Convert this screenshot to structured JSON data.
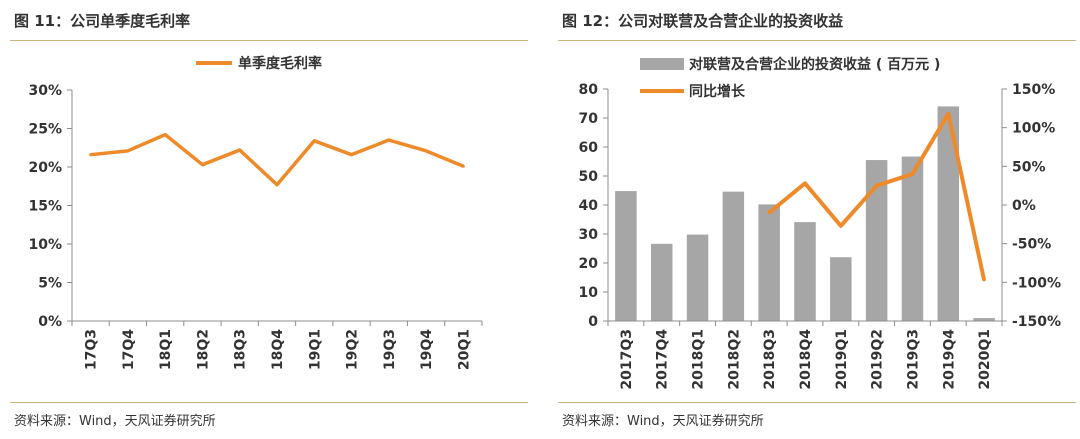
{
  "left": {
    "title": "图 11：公司单季度毛利率",
    "source": "资料来源：Wind，天风证券研究所"
  },
  "right": {
    "title": "图 12：公司对联营及合营企业的投资收益",
    "source": "资料来源：Wind，天风证券研究所"
  },
  "colors": {
    "line": "#ee8a2a",
    "bar": "#a6a6a6",
    "axis": "#8c8c8c",
    "text": "#333333"
  },
  "chart_data": [
    {
      "type": "line",
      "title": "",
      "categories": [
        "17Q3",
        "17Q4",
        "18Q1",
        "18Q2",
        "18Q3",
        "18Q4",
        "19Q1",
        "19Q2",
        "19Q3",
        "19Q4",
        "20Q1"
      ],
      "series": [
        {
          "name": "单季度毛利率",
          "values": [
            21.6,
            22.1,
            24.2,
            20.3,
            22.2,
            17.7,
            23.4,
            21.6,
            23.5,
            22.1,
            20.1
          ]
        }
      ],
      "ylim": [
        0,
        30
      ],
      "yticks": [
        "0%",
        "5%",
        "10%",
        "15%",
        "20%",
        "25%",
        "30%"
      ],
      "legend": "top-center",
      "grid": false
    },
    {
      "type": "bar",
      "title": "",
      "categories": [
        "2017Q3",
        "2017Q4",
        "2018Q1",
        "2018Q2",
        "2018Q3",
        "2018Q4",
        "2019Q1",
        "2019Q2",
        "2019Q3",
        "2019Q4",
        "2020Q1"
      ],
      "series": [
        {
          "name": "对联营及合营企业的投资收益 ( 百万元 )",
          "type": "bar",
          "axis": "left",
          "values": [
            44.8,
            26.6,
            29.8,
            44.6,
            40.2,
            34.1,
            22.0,
            55.5,
            56.7,
            74.0,
            1.0
          ]
        },
        {
          "name": "同比增长",
          "type": "line",
          "axis": "right",
          "values": [
            null,
            null,
            null,
            null,
            -10,
            28,
            -27,
            25,
            40,
            118,
            -97
          ]
        }
      ],
      "ylim": [
        0,
        80
      ],
      "yticks": [
        "0",
        "10",
        "20",
        "30",
        "40",
        "50",
        "60",
        "70",
        "80"
      ],
      "y2lim": [
        -150,
        150
      ],
      "y2ticks": [
        "-150%",
        "-100%",
        "-50%",
        "0%",
        "50%",
        "100%",
        "150%"
      ],
      "legend": "top-left",
      "grid": false
    }
  ]
}
